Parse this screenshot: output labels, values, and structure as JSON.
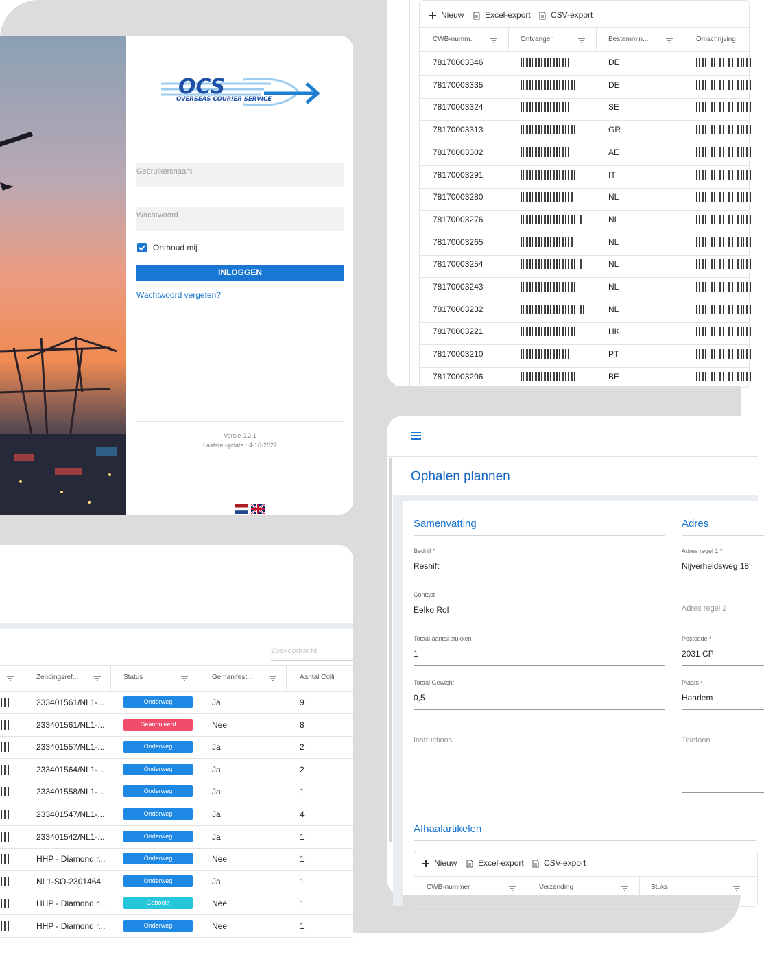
{
  "login": {
    "logo": {
      "name": "OCS",
      "tagline": "OVERSEAS COURIER SERVICE"
    },
    "username_placeholder": "Gebruikersnaam",
    "password_placeholder": "Wachtwoord",
    "remember_me": "Onthoud mij",
    "login_button": "INLOGGEN",
    "forgot_password": "Wachtwoord vergeten?",
    "version": "Versie 0.2.1",
    "last_update": "Laatste update : 4-10-2022"
  },
  "shipments_table": {
    "toolbar": [
      "Nieuw",
      "Excel-export",
      "CSV-export"
    ],
    "columns": [
      "CWB-numm...",
      "Ontvanger",
      "Bestemmin...",
      "Omschrijving"
    ],
    "rows": [
      {
        "cwb": "78170003346",
        "destination": "DE"
      },
      {
        "cwb": "78170003335",
        "destination": "DE"
      },
      {
        "cwb": "78170003324",
        "destination": "SE"
      },
      {
        "cwb": "78170003313",
        "destination": "GR"
      },
      {
        "cwb": "78170003302",
        "destination": "AE"
      },
      {
        "cwb": "78170003291",
        "destination": "IT"
      },
      {
        "cwb": "78170003280",
        "destination": "NL"
      },
      {
        "cwb": "78170003276",
        "destination": "NL"
      },
      {
        "cwb": "78170003265",
        "destination": "NL"
      },
      {
        "cwb": "78170003254",
        "destination": "NL"
      },
      {
        "cwb": "78170003243",
        "destination": "NL"
      },
      {
        "cwb": "78170003232",
        "destination": "NL"
      },
      {
        "cwb": "78170003221",
        "destination": "HK"
      },
      {
        "cwb": "78170003210",
        "destination": "PT"
      },
      {
        "cwb": "78170003206",
        "destination": "BE"
      }
    ]
  },
  "collections_table": {
    "search_placeholder": "Zoekopdracht",
    "columns": [
      "Zendingsref...",
      "Status",
      "Gemanifest...",
      "Aantal Colli"
    ],
    "rows": [
      {
        "reference": "233401561/NL1-...",
        "status": "Onderweg",
        "status_color": "#1e88e5",
        "manifested": "Ja",
        "colli": 9
      },
      {
        "reference": "233401561/NL1-...",
        "status": "Geannuleerd",
        "status_color": "#f04d6a",
        "manifested": "Nee",
        "colli": 8
      },
      {
        "reference": "233401557/NL1-...",
        "status": "Onderweg",
        "status_color": "#1e88e5",
        "manifested": "Ja",
        "colli": 2
      },
      {
        "reference": "233401564/NL1-...",
        "status": "Onderweg",
        "status_color": "#1e88e5",
        "manifested": "Ja",
        "colli": 2
      },
      {
        "reference": "233401558/NL1-...",
        "status": "Onderweg",
        "status_color": "#1e88e5",
        "manifested": "Ja",
        "colli": 1
      },
      {
        "reference": "233401547/NL1-...",
        "status": "Onderweg",
        "status_color": "#1e88e5",
        "manifested": "Ja",
        "colli": 4
      },
      {
        "reference": "233401542/NL1-...",
        "status": "Onderweg",
        "status_color": "#1e88e5",
        "manifested": "Ja",
        "colli": 1
      },
      {
        "reference": "HHP - Diamond r...",
        "status": "Onderweg",
        "status_color": "#1e88e5",
        "manifested": "Nee",
        "colli": 1
      },
      {
        "reference": "NL1-SO-2301464",
        "status": "Onderweg",
        "status_color": "#1e88e5",
        "manifested": "Ja",
        "colli": 1
      },
      {
        "reference": "HHP - Diamond r...",
        "status": "Geboekt",
        "status_color": "#26c6da",
        "manifested": "Nee",
        "colli": 1
      },
      {
        "reference": "HHP - Diamond r...",
        "status": "Onderweg",
        "status_color": "#1e88e5",
        "manifested": "Nee",
        "colli": 1
      }
    ]
  },
  "pickup_form": {
    "title": "Ophalen plannen",
    "summary": {
      "heading": "Samenvatting",
      "fields": [
        {
          "label": "Bedrijf *",
          "value": "Reshift"
        },
        {
          "label": "Contact",
          "value": "Eelko Rol"
        },
        {
          "label": "Totaal aantal stukken",
          "value": "1"
        },
        {
          "label": "Totaal Gewicht",
          "value": "0,5"
        },
        {
          "label": "Instructions"
        }
      ]
    },
    "address": {
      "heading": "Adres",
      "fields": [
        {
          "label": "Adres regel 1 *",
          "value": "Nijverheidsweg 18"
        },
        {
          "label": "Adres regel 2"
        },
        {
          "label": "Postcode *",
          "value": "2031 CP"
        },
        {
          "label": "Plaats *",
          "value": "Haarlem"
        },
        {
          "label": "Telefoon"
        }
      ]
    },
    "items": {
      "heading": "Afhaalartikelen",
      "toolbar": [
        "Nieuw",
        "Excel-export",
        "CSV-export"
      ],
      "columns": [
        "CWB-nummer",
        "Verzending",
        "Stuks"
      ]
    }
  }
}
